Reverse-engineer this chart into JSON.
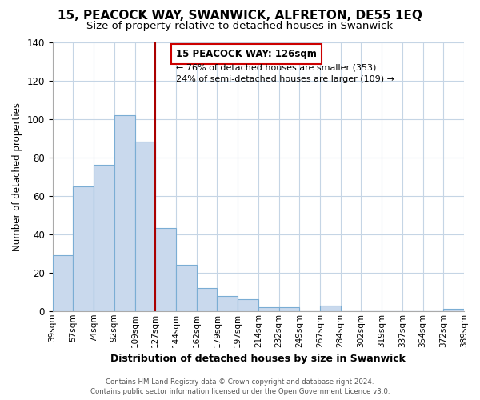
{
  "title": "15, PEACOCK WAY, SWANWICK, ALFRETON, DE55 1EQ",
  "subtitle": "Size of property relative to detached houses in Swanwick",
  "xlabel": "Distribution of detached houses by size in Swanwick",
  "ylabel": "Number of detached properties",
  "bar_labels": [
    "39sqm",
    "57sqm",
    "74sqm",
    "92sqm",
    "109sqm",
    "127sqm",
    "144sqm",
    "162sqm",
    "179sqm",
    "197sqm",
    "214sqm",
    "232sqm",
    "249sqm",
    "267sqm",
    "284sqm",
    "302sqm",
    "319sqm",
    "337sqm",
    "354sqm",
    "372sqm",
    "389sqm"
  ],
  "bar_values": [
    29,
    65,
    76,
    102,
    88,
    43,
    24,
    12,
    8,
    6,
    2,
    2,
    0,
    3,
    0,
    0,
    0,
    0,
    0,
    1
  ],
  "bar_color": "#c9d9ed",
  "bar_edge_color": "#7aadd4",
  "vline_x": 5,
  "vline_color": "#aa0000",
  "ylim": [
    0,
    140
  ],
  "yticks": [
    0,
    20,
    40,
    60,
    80,
    100,
    120,
    140
  ],
  "annotation_title": "15 PEACOCK WAY: 126sqm",
  "annotation_line1": "← 76% of detached houses are smaller (353)",
  "annotation_line2": "24% of semi-detached houses are larger (109) →",
  "annotation_box_color": "#ffffff",
  "annotation_box_edge": "#cc0000",
  "footer_line1": "Contains HM Land Registry data © Crown copyright and database right 2024.",
  "footer_line2": "Contains public sector information licensed under the Open Government Licence v3.0.",
  "background_color": "#ffffff",
  "grid_color": "#c5d5e5",
  "title_fontsize": 11,
  "subtitle_fontsize": 9.5
}
